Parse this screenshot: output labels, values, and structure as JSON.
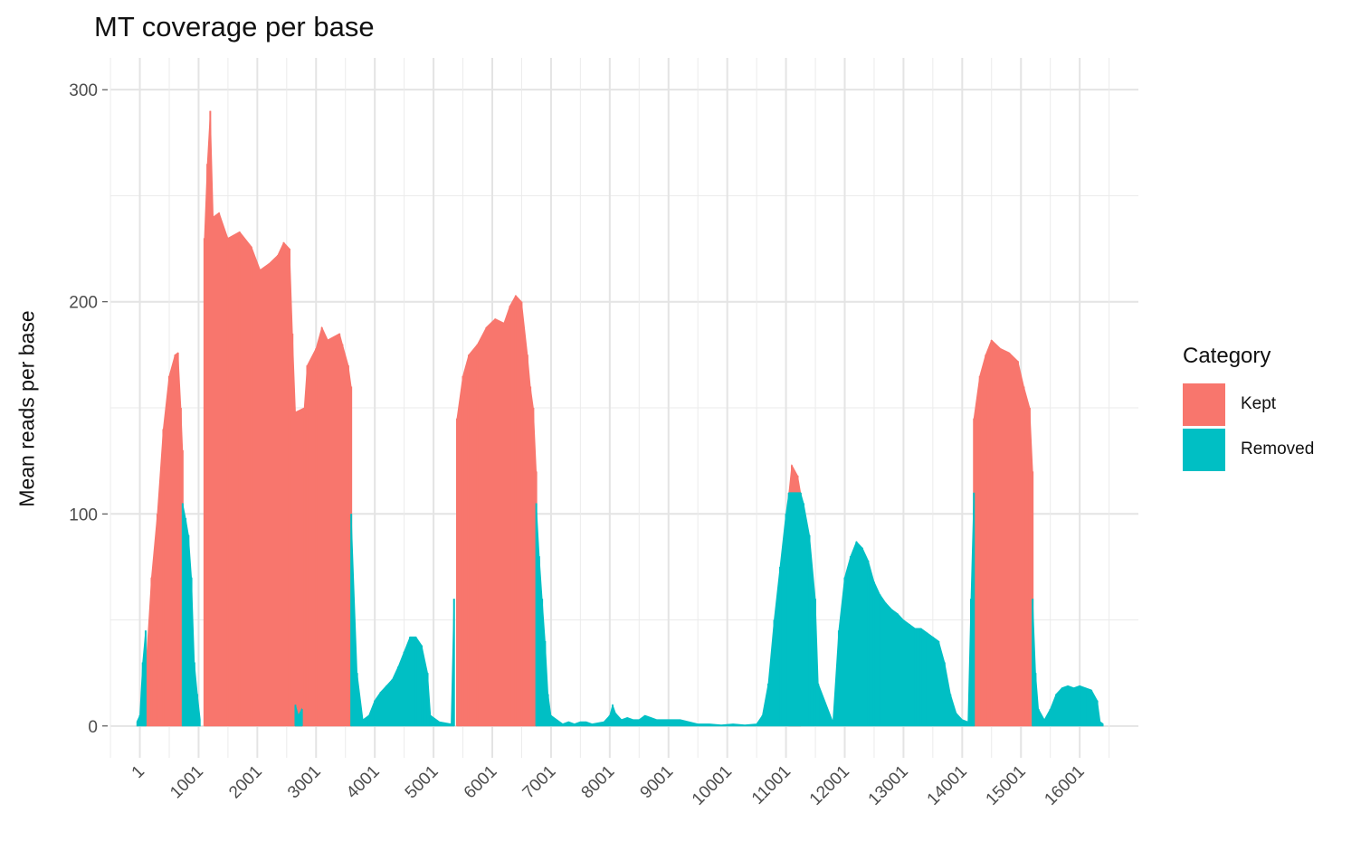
{
  "chart_data": {
    "type": "bar",
    "title": "MT coverage per base",
    "xlabel": "",
    "ylabel": "Mean reads per base",
    "xlim": [
      -500,
      17000
    ],
    "ylim": [
      -15,
      315
    ],
    "y_ticks": [
      0,
      100,
      200,
      300
    ],
    "x_tick_labels": [
      "1",
      "1001",
      "2001",
      "3001",
      "4001",
      "5001",
      "6001",
      "7001",
      "8001",
      "9001",
      "10001",
      "11001",
      "12001",
      "13001",
      "14001",
      "15001",
      "16001"
    ],
    "grid": true,
    "legend": {
      "title": "Category",
      "position": "right"
    },
    "series": [
      {
        "name": "Kept",
        "color": "#F8766D",
        "points": [
          [
            100,
            25
          ],
          [
            200,
            70
          ],
          [
            300,
            100
          ],
          [
            400,
            140
          ],
          [
            500,
            165
          ],
          [
            600,
            175
          ],
          [
            650,
            176
          ],
          [
            700,
            150
          ],
          [
            730,
            130
          ],
          [
            1100,
            230
          ],
          [
            1150,
            265
          ],
          [
            1200,
            290
          ],
          [
            1250,
            240
          ],
          [
            1350,
            242
          ],
          [
            1500,
            230
          ],
          [
            1700,
            233
          ],
          [
            1900,
            226
          ],
          [
            2050,
            215
          ],
          [
            2200,
            218
          ],
          [
            2350,
            222
          ],
          [
            2450,
            228
          ],
          [
            2550,
            225
          ],
          [
            2600,
            185
          ],
          [
            2650,
            148
          ],
          [
            2800,
            150
          ],
          [
            2850,
            170
          ],
          [
            3000,
            178
          ],
          [
            3100,
            188
          ],
          [
            3200,
            182
          ],
          [
            3400,
            185
          ],
          [
            3450,
            180
          ],
          [
            3550,
            170
          ],
          [
            3600,
            160
          ],
          [
            5400,
            145
          ],
          [
            5500,
            165
          ],
          [
            5600,
            175
          ],
          [
            5750,
            180
          ],
          [
            5900,
            188
          ],
          [
            6050,
            192
          ],
          [
            6200,
            190
          ],
          [
            6300,
            198
          ],
          [
            6400,
            203
          ],
          [
            6500,
            200
          ],
          [
            6600,
            175
          ],
          [
            6650,
            160
          ],
          [
            6700,
            150
          ],
          [
            6750,
            120
          ],
          [
            11050,
            110
          ],
          [
            11100,
            123
          ],
          [
            11200,
            118
          ],
          [
            11250,
            110
          ],
          [
            14200,
            145
          ],
          [
            14300,
            165
          ],
          [
            14400,
            175
          ],
          [
            14500,
            182
          ],
          [
            14650,
            178
          ],
          [
            14800,
            176
          ],
          [
            14950,
            172
          ],
          [
            15050,
            160
          ],
          [
            15150,
            150
          ],
          [
            15200,
            120
          ]
        ]
      },
      {
        "name": "Removed",
        "color": "#00BFC4",
        "points": [
          [
            -50,
            2
          ],
          [
            0,
            5
          ],
          [
            50,
            30
          ],
          [
            100,
            45
          ],
          [
            730,
            105
          ],
          [
            780,
            98
          ],
          [
            830,
            90
          ],
          [
            880,
            70
          ],
          [
            930,
            30
          ],
          [
            980,
            15
          ],
          [
            1030,
            3
          ],
          [
            2650,
            10
          ],
          [
            2700,
            5
          ],
          [
            2760,
            8
          ],
          [
            3600,
            100
          ],
          [
            3700,
            25
          ],
          [
            3800,
            3
          ],
          [
            3900,
            5
          ],
          [
            4000,
            12
          ],
          [
            4100,
            16
          ],
          [
            4200,
            19
          ],
          [
            4300,
            22
          ],
          [
            4400,
            28
          ],
          [
            4500,
            35
          ],
          [
            4600,
            42
          ],
          [
            4700,
            42
          ],
          [
            4800,
            38
          ],
          [
            4900,
            25
          ],
          [
            4950,
            5
          ],
          [
            5100,
            2
          ],
          [
            5300,
            1
          ],
          [
            5350,
            60
          ],
          [
            6750,
            105
          ],
          [
            6800,
            80
          ],
          [
            6850,
            60
          ],
          [
            6900,
            40
          ],
          [
            6950,
            15
          ],
          [
            7000,
            5
          ],
          [
            7200,
            1
          ],
          [
            7300,
            2
          ],
          [
            7400,
            1
          ],
          [
            7500,
            2
          ],
          [
            7600,
            2
          ],
          [
            7700,
            1
          ],
          [
            7900,
            2
          ],
          [
            8000,
            5
          ],
          [
            8050,
            10
          ],
          [
            8100,
            6
          ],
          [
            8200,
            3
          ],
          [
            8300,
            4
          ],
          [
            8400,
            3
          ],
          [
            8500,
            3
          ],
          [
            8600,
            5
          ],
          [
            8700,
            4
          ],
          [
            8800,
            3
          ],
          [
            9000,
            3
          ],
          [
            9200,
            3
          ],
          [
            9350,
            2
          ],
          [
            9500,
            1
          ],
          [
            9700,
            1
          ],
          [
            9900,
            0.5
          ],
          [
            10100,
            1
          ],
          [
            10300,
            0.5
          ],
          [
            10500,
            1
          ],
          [
            10600,
            5
          ],
          [
            10700,
            20
          ],
          [
            10800,
            50
          ],
          [
            10900,
            75
          ],
          [
            11000,
            100
          ],
          [
            11050,
            110
          ],
          [
            11250,
            110
          ],
          [
            11300,
            105
          ],
          [
            11400,
            90
          ],
          [
            11500,
            60
          ],
          [
            11550,
            20
          ],
          [
            11800,
            2
          ],
          [
            11900,
            45
          ],
          [
            12000,
            70
          ],
          [
            12100,
            80
          ],
          [
            12200,
            87
          ],
          [
            12300,
            84
          ],
          [
            12400,
            78
          ],
          [
            12500,
            68
          ],
          [
            12600,
            62
          ],
          [
            12700,
            58
          ],
          [
            12800,
            55
          ],
          [
            12900,
            53
          ],
          [
            13000,
            50
          ],
          [
            13100,
            48
          ],
          [
            13200,
            46
          ],
          [
            13300,
            46
          ],
          [
            13400,
            44
          ],
          [
            13500,
            42
          ],
          [
            13600,
            40
          ],
          [
            13700,
            30
          ],
          [
            13800,
            15
          ],
          [
            13900,
            6
          ],
          [
            14000,
            3
          ],
          [
            14100,
            2
          ],
          [
            14150,
            60
          ],
          [
            14200,
            110
          ],
          [
            15200,
            60
          ],
          [
            15250,
            25
          ],
          [
            15300,
            8
          ],
          [
            15400,
            3
          ],
          [
            15500,
            8
          ],
          [
            15600,
            15
          ],
          [
            15700,
            18
          ],
          [
            15800,
            19
          ],
          [
            15900,
            18
          ],
          [
            16000,
            19
          ],
          [
            16100,
            18
          ],
          [
            16200,
            17
          ],
          [
            16300,
            12
          ],
          [
            16350,
            2
          ],
          [
            16400,
            1
          ]
        ]
      }
    ]
  }
}
